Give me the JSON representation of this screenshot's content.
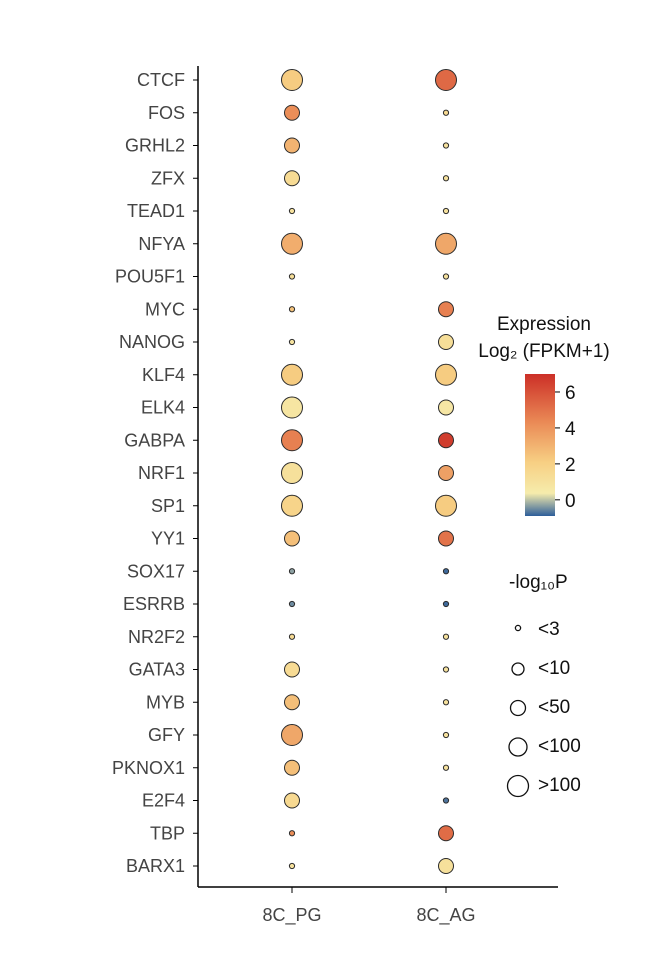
{
  "chart_data": {
    "type": "bubble",
    "categories_x": [
      "8C_PG",
      "8C_AG"
    ],
    "genes": [
      "CTCF",
      "FOS",
      "GRHL2",
      "ZFX",
      "TEAD1",
      "NFYA",
      "POU5F1",
      "MYC",
      "NANOG",
      "KLF4",
      "ELK4",
      "GABPA",
      "NRF1",
      "SP1",
      "YY1",
      "SOX17",
      "ESRRB",
      "NR2F2",
      "GATA3",
      "MYB",
      "GFY",
      "PKNOX1",
      "E2F4",
      "TBP",
      "BARX1"
    ],
    "points": [
      {
        "gene": "CTCF",
        "x": "8C_PG",
        "expression": 2.2,
        "p_bin": ">100"
      },
      {
        "gene": "CTCF",
        "x": "8C_AG",
        "expression": 5.3,
        "p_bin": ">100"
      },
      {
        "gene": "FOS",
        "x": "8C_PG",
        "expression": 4.2,
        "p_bin": "<50"
      },
      {
        "gene": "FOS",
        "x": "8C_AG",
        "expression": 1.5,
        "p_bin": "<3"
      },
      {
        "gene": "GRHL2",
        "x": "8C_PG",
        "expression": 3.0,
        "p_bin": "<50"
      },
      {
        "gene": "GRHL2",
        "x": "8C_AG",
        "expression": 1.0,
        "p_bin": "<3"
      },
      {
        "gene": "ZFX",
        "x": "8C_PG",
        "expression": 1.4,
        "p_bin": "<50"
      },
      {
        "gene": "ZFX",
        "x": "8C_AG",
        "expression": 1.0,
        "p_bin": "<3"
      },
      {
        "gene": "TEAD1",
        "x": "8C_PG",
        "expression": 1.0,
        "p_bin": "<3"
      },
      {
        "gene": "TEAD1",
        "x": "8C_AG",
        "expression": 1.0,
        "p_bin": "<3"
      },
      {
        "gene": "NFYA",
        "x": "8C_PG",
        "expression": 3.2,
        "p_bin": ">100"
      },
      {
        "gene": "NFYA",
        "x": "8C_AG",
        "expression": 3.4,
        "p_bin": ">100"
      },
      {
        "gene": "POU5F1",
        "x": "8C_PG",
        "expression": 1.2,
        "p_bin": "<3"
      },
      {
        "gene": "POU5F1",
        "x": "8C_AG",
        "expression": 1.0,
        "p_bin": "<3"
      },
      {
        "gene": "MYC",
        "x": "8C_PG",
        "expression": 2.5,
        "p_bin": "<3"
      },
      {
        "gene": "MYC",
        "x": "8C_AG",
        "expression": 4.6,
        "p_bin": "<50"
      },
      {
        "gene": "NANOG",
        "x": "8C_PG",
        "expression": 0.9,
        "p_bin": "<3"
      },
      {
        "gene": "NANOG",
        "x": "8C_AG",
        "expression": 1.2,
        "p_bin": "<50"
      },
      {
        "gene": "KLF4",
        "x": "8C_PG",
        "expression": 2.2,
        "p_bin": ">100"
      },
      {
        "gene": "KLF4",
        "x": "8C_AG",
        "expression": 2.2,
        "p_bin": ">100"
      },
      {
        "gene": "ELK4",
        "x": "8C_PG",
        "expression": 0.8,
        "p_bin": ">100"
      },
      {
        "gene": "ELK4",
        "x": "8C_AG",
        "expression": 0.7,
        "p_bin": "<50"
      },
      {
        "gene": "GABPA",
        "x": "8C_PG",
        "expression": 4.6,
        "p_bin": ">100"
      },
      {
        "gene": "GABPA",
        "x": "8C_AG",
        "expression": 6.6,
        "p_bin": "<50"
      },
      {
        "gene": "NRF1",
        "x": "8C_PG",
        "expression": 1.1,
        "p_bin": ">100"
      },
      {
        "gene": "NRF1",
        "x": "8C_AG",
        "expression": 3.6,
        "p_bin": "<50"
      },
      {
        "gene": "SP1",
        "x": "8C_PG",
        "expression": 1.8,
        "p_bin": ">100"
      },
      {
        "gene": "SP1",
        "x": "8C_AG",
        "expression": 2.2,
        "p_bin": ">100"
      },
      {
        "gene": "YY1",
        "x": "8C_PG",
        "expression": 2.6,
        "p_bin": "<50"
      },
      {
        "gene": "YY1",
        "x": "8C_AG",
        "expression": 5.0,
        "p_bin": "<50"
      },
      {
        "gene": "SOX17",
        "x": "8C_PG",
        "expression": -0.3,
        "p_bin": "<3"
      },
      {
        "gene": "SOX17",
        "x": "8C_AG",
        "expression": -0.8,
        "p_bin": "<3"
      },
      {
        "gene": "ESRRB",
        "x": "8C_PG",
        "expression": -0.5,
        "p_bin": "<3"
      },
      {
        "gene": "ESRRB",
        "x": "8C_AG",
        "expression": -0.8,
        "p_bin": "<3"
      },
      {
        "gene": "NR2F2",
        "x": "8C_PG",
        "expression": 1.4,
        "p_bin": "<3"
      },
      {
        "gene": "NR2F2",
        "x": "8C_AG",
        "expression": 1.0,
        "p_bin": "<3"
      },
      {
        "gene": "GATA3",
        "x": "8C_PG",
        "expression": 1.4,
        "p_bin": "<50"
      },
      {
        "gene": "GATA3",
        "x": "8C_AG",
        "expression": 1.0,
        "p_bin": "<3"
      },
      {
        "gene": "MYB",
        "x": "8C_PG",
        "expression": 2.6,
        "p_bin": "<50"
      },
      {
        "gene": "MYB",
        "x": "8C_AG",
        "expression": 1.0,
        "p_bin": "<3"
      },
      {
        "gene": "GFY",
        "x": "8C_PG",
        "expression": 3.4,
        "p_bin": ">100"
      },
      {
        "gene": "GFY",
        "x": "8C_AG",
        "expression": 1.0,
        "p_bin": "<3"
      },
      {
        "gene": "PKNOX1",
        "x": "8C_PG",
        "expression": 2.6,
        "p_bin": "<50"
      },
      {
        "gene": "PKNOX1",
        "x": "8C_AG",
        "expression": 1.0,
        "p_bin": "<3"
      },
      {
        "gene": "E2F4",
        "x": "8C_PG",
        "expression": 1.5,
        "p_bin": "<50"
      },
      {
        "gene": "E2F4",
        "x": "8C_AG",
        "expression": -0.7,
        "p_bin": "<3"
      },
      {
        "gene": "TBP",
        "x": "8C_PG",
        "expression": 4.2,
        "p_bin": "<3"
      },
      {
        "gene": "TBP",
        "x": "8C_AG",
        "expression": 5.2,
        "p_bin": "<50"
      },
      {
        "gene": "BARX1",
        "x": "8C_PG",
        "expression": 1.0,
        "p_bin": "<3"
      },
      {
        "gene": "BARX1",
        "x": "8C_AG",
        "expression": 1.1,
        "p_bin": "<50"
      }
    ],
    "color_legend": {
      "title": "Expression",
      "subtitle": "Log₂ (FPKM+1)",
      "ticks": [
        "0",
        "2",
        "4",
        "6"
      ],
      "tick_values": [
        0,
        2,
        4,
        6
      ],
      "range": [
        -0.9,
        7
      ],
      "colors": [
        "#2e5e9a",
        "#f6ecac",
        "#f7cf83",
        "#ea8a56",
        "#cc2f27"
      ]
    },
    "size_legend": {
      "title": "-log₁₀P",
      "entries": [
        "<3",
        "<10",
        "<50",
        "<100",
        ">100"
      ]
    }
  }
}
